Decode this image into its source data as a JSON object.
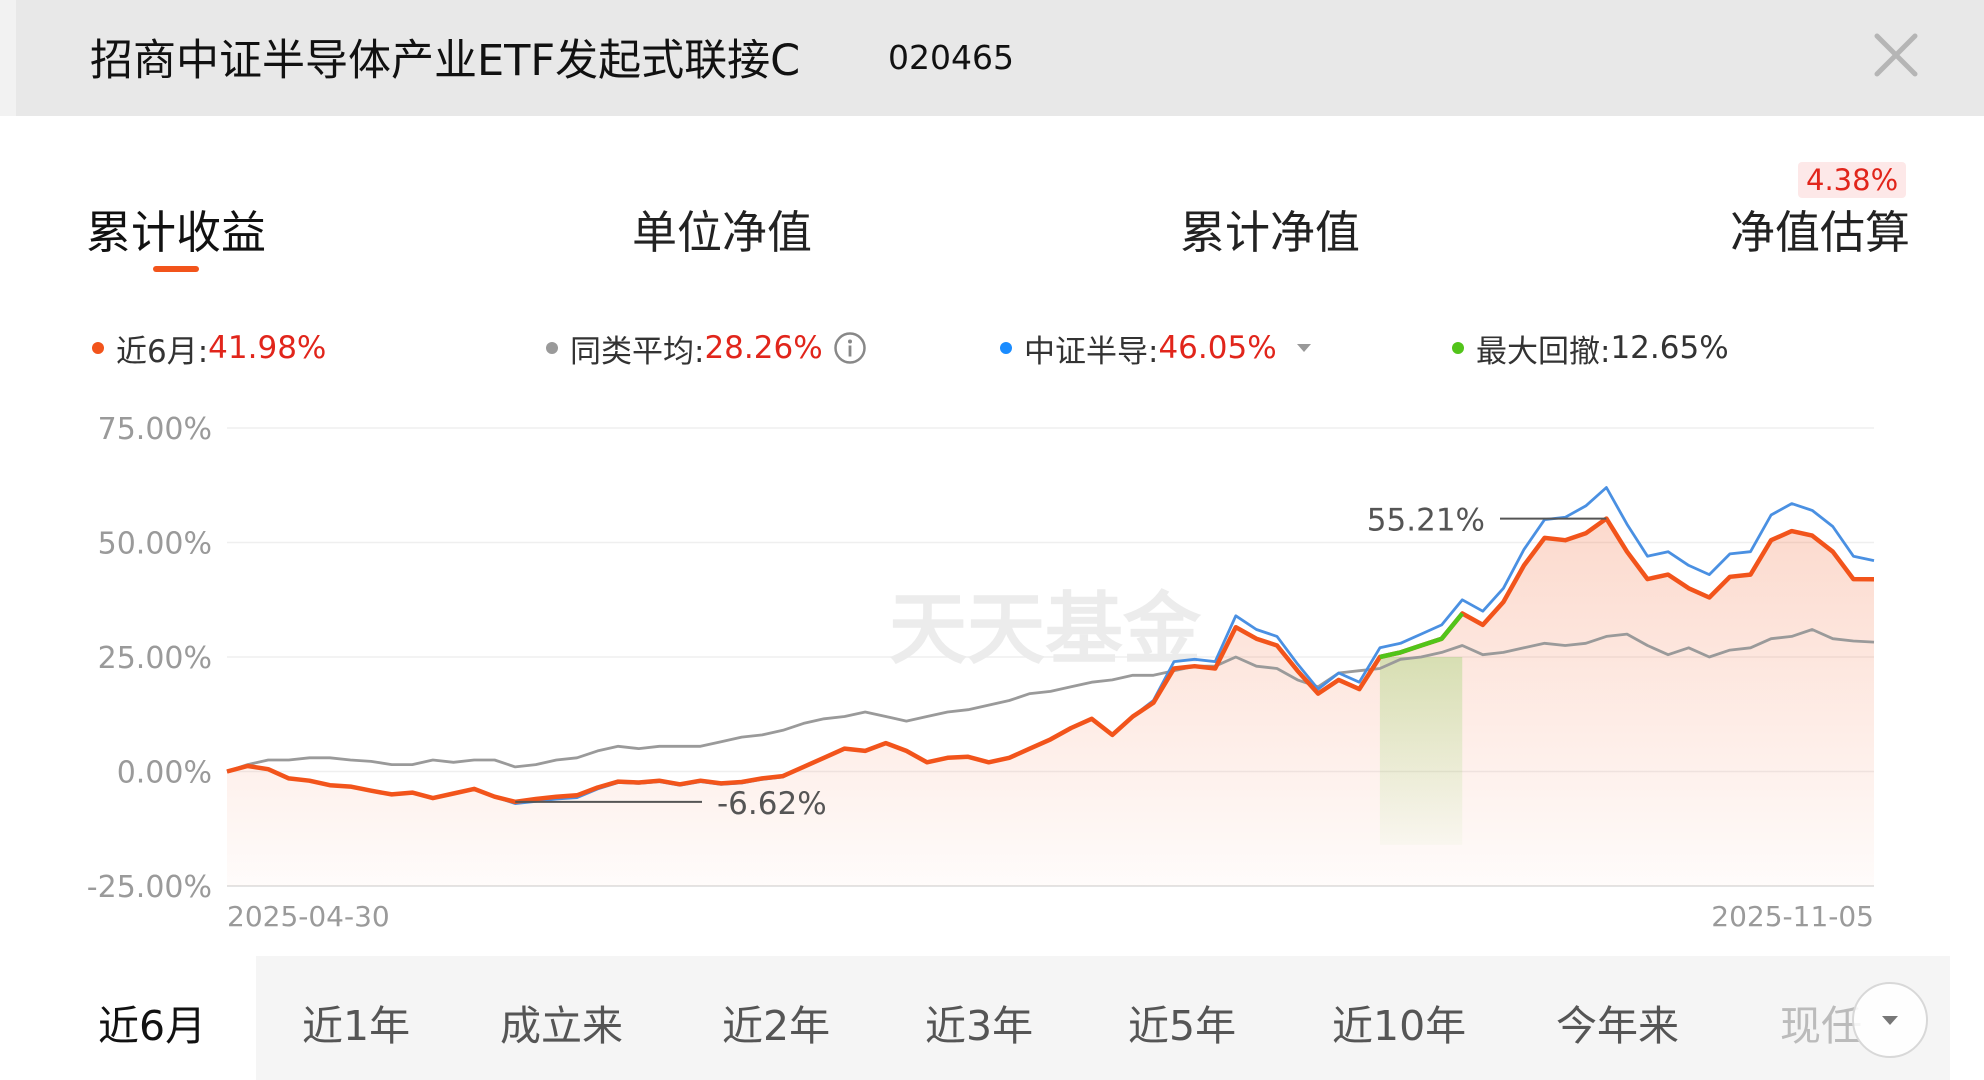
{
  "header": {
    "title": "招商中证半导体产业ETF发起式联接C",
    "code": "020465"
  },
  "tabs": [
    {
      "label": "累计收益",
      "active": true
    },
    {
      "label": "单位净值",
      "active": false
    },
    {
      "label": "累计净值",
      "active": false
    },
    {
      "label": "净值估算",
      "active": false,
      "badge": "4.38%"
    }
  ],
  "legend": [
    {
      "label": "近6月:",
      "value": "41.98%",
      "color": "#f2541b"
    },
    {
      "label": "同类平均:",
      "value": "28.26%",
      "color": "#9a9a9a"
    },
    {
      "label": "中证半导:",
      "value": "46.05%",
      "color": "#1a8cff"
    },
    {
      "label": "最大回撤:",
      "value": "12.65%",
      "color": "#52c41a"
    }
  ],
  "watermark": "天天基金",
  "periods": [
    "近6月",
    "近1年",
    "成立来",
    "近2年",
    "近3年",
    "近5年",
    "近10年",
    "今年来",
    "现任"
  ],
  "colors": {
    "accent": "#f2541b",
    "positive": "#e1251b",
    "peer": "#9a9a9a",
    "index": "#4a90e2",
    "drawdown": "#52c41a"
  },
  "chart_data": {
    "type": "line",
    "x_start_label": "2025-04-30",
    "x_end_label": "2025-11-05",
    "yticks": [
      "75.00%",
      "50.00%",
      "25.00%",
      "0.00%",
      "-25.00%"
    ],
    "ylim": [
      -25,
      75
    ],
    "annotations": [
      {
        "text": "55.21%",
        "value": 55.21,
        "series": "近6月"
      },
      {
        "text": "-6.62%",
        "value": -6.62,
        "series": "近6月"
      }
    ],
    "drawdown": {
      "max": 12.65,
      "from_index": 56,
      "to_index": 60
    },
    "series": [
      {
        "name": "近6月",
        "color": "#f2541b",
        "values": [
          0,
          1.2,
          0.5,
          -1.5,
          -2.0,
          -3.0,
          -3.3,
          -4.2,
          -5.0,
          -4.6,
          -5.8,
          -4.8,
          -3.8,
          -5.5,
          -6.62,
          -6.0,
          -5.5,
          -5.2,
          -3.5,
          -2.2,
          -2.4,
          -2.0,
          -2.8,
          -2.0,
          -2.6,
          -2.3,
          -1.5,
          -1.0,
          1.0,
          3.0,
          5.0,
          4.5,
          6.2,
          4.5,
          2.0,
          3.0,
          3.2,
          2.0,
          3.0,
          5.0,
          7.0,
          9.5,
          11.5,
          8.0,
          12.0,
          15.0,
          22.5,
          23.0,
          22.5,
          31.5,
          29.0,
          27.5,
          22.0,
          17.0,
          20.0,
          18.0,
          25.0,
          26.0,
          27.5,
          29.0,
          34.5,
          32.0,
          37.0,
          45.0,
          51.0,
          50.5,
          52.0,
          55.21,
          48.0,
          42.0,
          43.0,
          40.0,
          38.0,
          42.5,
          43.0,
          50.5,
          52.5,
          51.5,
          48.0,
          42.0,
          41.98
        ]
      },
      {
        "name": "同类平均",
        "color": "#9a9a9a",
        "values": [
          0,
          1.5,
          2.5,
          2.5,
          3.0,
          3.0,
          2.5,
          2.2,
          1.5,
          1.5,
          2.5,
          2.0,
          2.5,
          2.5,
          1.0,
          1.5,
          2.5,
          3.0,
          4.5,
          5.5,
          5.0,
          5.5,
          5.5,
          5.5,
          6.5,
          7.5,
          8.0,
          9.0,
          10.5,
          11.5,
          12.0,
          13.0,
          12.0,
          11.0,
          12.0,
          13.0,
          13.5,
          14.5,
          15.5,
          17.0,
          17.5,
          18.5,
          19.5,
          20.0,
          21.0,
          21.0,
          22.0,
          23.0,
          23.0,
          25.0,
          23.0,
          22.5,
          20.0,
          18.5,
          21.5,
          22.0,
          22.5,
          24.5,
          25.0,
          26.0,
          27.5,
          25.5,
          26.0,
          27.0,
          28.0,
          27.5,
          28.0,
          29.5,
          30.0,
          27.5,
          25.5,
          27.0,
          25.0,
          26.5,
          27.0,
          29.0,
          29.5,
          31.0,
          29.0,
          28.5,
          28.26
        ]
      },
      {
        "name": "中证半导",
        "color": "#4a90e2",
        "values": [
          0,
          1.2,
          0.5,
          -1.5,
          -2.0,
          -3.0,
          -3.3,
          -4.2,
          -5.0,
          -4.6,
          -5.8,
          -4.8,
          -3.8,
          -5.5,
          -7.0,
          -6.5,
          -6.0,
          -5.7,
          -3.8,
          -2.4,
          -2.6,
          -2.2,
          -3.0,
          -2.2,
          -2.8,
          -2.5,
          -1.7,
          -1.2,
          1.0,
          3.0,
          5.0,
          4.5,
          6.2,
          4.5,
          2.0,
          3.0,
          3.2,
          2.0,
          3.0,
          5.0,
          7.0,
          9.5,
          11.5,
          8.0,
          12.0,
          15.5,
          24.0,
          24.5,
          24.0,
          34.0,
          31.0,
          29.5,
          23.5,
          18.0,
          21.5,
          19.5,
          27.0,
          28.0,
          30.0,
          32.0,
          37.5,
          35.0,
          40.0,
          48.5,
          55.0,
          55.5,
          58.0,
          62.0,
          54.0,
          47.0,
          48.0,
          45.0,
          43.0,
          47.5,
          48.0,
          56.0,
          58.5,
          57.0,
          53.5,
          47.0,
          46.05
        ]
      }
    ]
  }
}
